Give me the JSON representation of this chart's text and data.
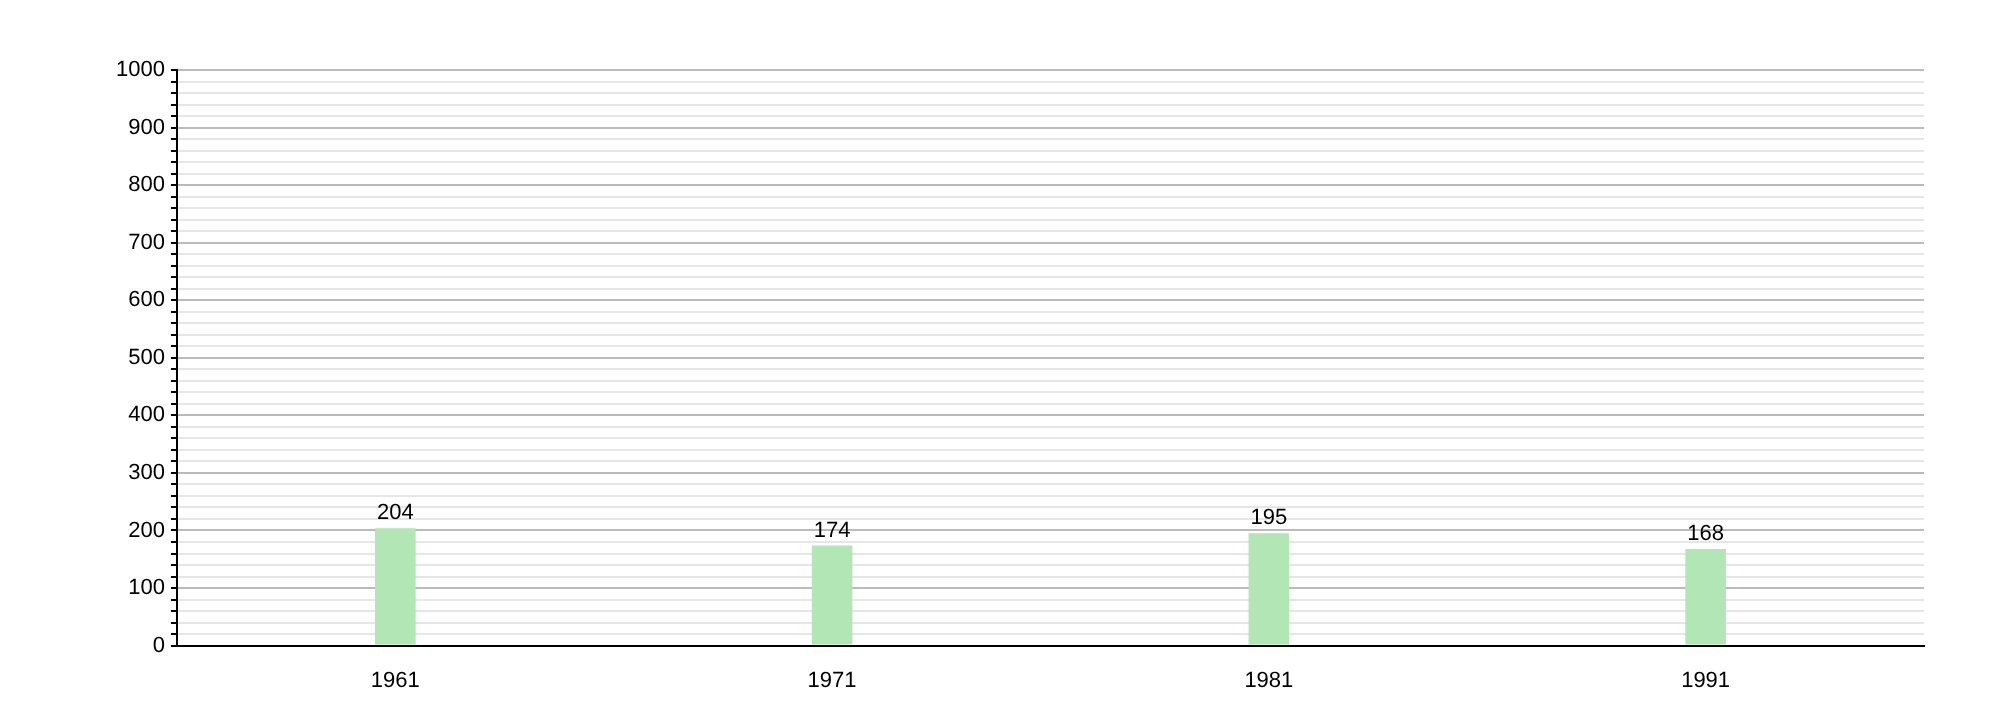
{
  "chart_data": {
    "type": "bar",
    "categories": [
      "1961",
      "1971",
      "1981",
      "1991"
    ],
    "values": [
      204,
      174,
      195,
      168
    ],
    "color": "#b3e6b5",
    "ylim": [
      0,
      1000
    ],
    "yticks": [
      0,
      {
        "value": 20,
        "label": null
      },
      {
        "value": 40,
        "label": null
      },
      {
        "value": 60,
        "label": null
      },
      {
        "value": 80,
        "label": null
      },
      100,
      {
        "value": 120,
        "label": null
      },
      {
        "value": 140,
        "label": null
      },
      {
        "value": 160,
        "label": null
      },
      {
        "value": 180,
        "label": null
      },
      200,
      {
        "value": 220,
        "label": null
      },
      {
        "value": 240,
        "label": null
      },
      {
        "value": 260,
        "label": null
      },
      {
        "value": 280,
        "label": null
      },
      300,
      {
        "value": 320,
        "label": null
      },
      {
        "value": 340,
        "label": null
      },
      {
        "value": 360,
        "label": null
      },
      {
        "value": 380,
        "label": null
      },
      400,
      {
        "value": 420,
        "label": null
      },
      {
        "value": 440,
        "label": null
      },
      {
        "value": 460,
        "label": null
      },
      {
        "value": 480,
        "label": null
      },
      500,
      {
        "value": 520,
        "label": null
      },
      {
        "value": 540,
        "label": null
      },
      {
        "value": 560,
        "label": null
      },
      {
        "value": 580,
        "label": null
      },
      600,
      {
        "value": 620,
        "label": null
      },
      {
        "value": 640,
        "label": null
      },
      {
        "value": 660,
        "label": null
      },
      {
        "value": 680,
        "label": null
      },
      700,
      {
        "value": 720,
        "label": null
      },
      {
        "value": 740,
        "label": null
      },
      {
        "value": 760,
        "label": null
      },
      {
        "value": 780,
        "label": null
      },
      800,
      {
        "value": 820,
        "label": null
      },
      {
        "value": 840,
        "label": null
      },
      {
        "value": 860,
        "label": null
      },
      {
        "value": 880,
        "label": null
      },
      900,
      {
        "value": 920,
        "label": null
      },
      {
        "value": 940,
        "label": null
      },
      {
        "value": 960,
        "label": null
      },
      {
        "value": 980,
        "label": null
      },
      1000
    ],
    "grid": true,
    "data_labels": true
  }
}
